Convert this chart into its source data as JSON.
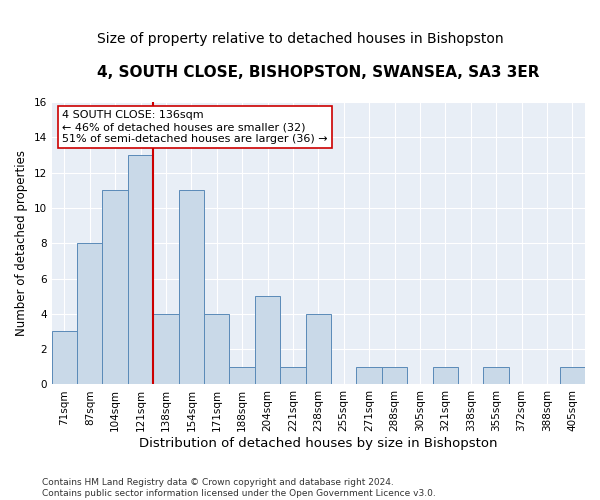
{
  "title": "4, SOUTH CLOSE, BISHOPSTON, SWANSEA, SA3 3ER",
  "subtitle": "Size of property relative to detached houses in Bishopston",
  "xlabel": "Distribution of detached houses by size in Bishopston",
  "ylabel": "Number of detached properties",
  "categories": [
    "71sqm",
    "87sqm",
    "104sqm",
    "121sqm",
    "138sqm",
    "154sqm",
    "171sqm",
    "188sqm",
    "204sqm",
    "221sqm",
    "238sqm",
    "255sqm",
    "271sqm",
    "288sqm",
    "305sqm",
    "321sqm",
    "338sqm",
    "355sqm",
    "372sqm",
    "388sqm",
    "405sqm"
  ],
  "values": [
    3,
    8,
    11,
    13,
    4,
    11,
    4,
    1,
    5,
    1,
    4,
    0,
    1,
    1,
    0,
    1,
    0,
    1,
    0,
    0,
    1
  ],
  "bar_color": "#c9d9e8",
  "bar_edge_color": "#5a8ab8",
  "bar_linewidth": 0.7,
  "vline_color": "#cc0000",
  "vline_linewidth": 1.5,
  "annotation_text": "4 SOUTH CLOSE: 136sqm\n← 46% of detached houses are smaller (32)\n51% of semi-detached houses are larger (36) →",
  "annotation_box_color": "#ffffff",
  "annotation_box_edgecolor": "#cc0000",
  "ylim": [
    0,
    16
  ],
  "yticks": [
    0,
    2,
    4,
    6,
    8,
    10,
    12,
    14,
    16
  ],
  "background_color": "#e8eef6",
  "footer": "Contains HM Land Registry data © Crown copyright and database right 2024.\nContains public sector information licensed under the Open Government Licence v3.0.",
  "title_fontsize": 11,
  "subtitle_fontsize": 10,
  "xlabel_fontsize": 9.5,
  "ylabel_fontsize": 8.5,
  "tick_fontsize": 7.5,
  "annotation_fontsize": 8,
  "footer_fontsize": 6.5
}
